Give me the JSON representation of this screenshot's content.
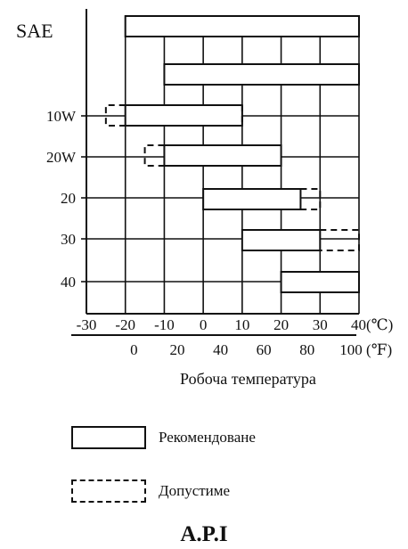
{
  "chart_data": {
    "type": "range-bar",
    "ylabel": "SAE",
    "xlabel": "Робоча температура",
    "x_celsius_ticks": [
      "-30",
      "-20",
      "-10",
      "0",
      "10",
      "20",
      "30",
      "40(℃)"
    ],
    "x_fahrenheit_ticks": [
      "0",
      "20",
      "40",
      "60",
      "80",
      "100 (℉)"
    ],
    "grade_labels": [
      "10W",
      "20W",
      "20",
      "30",
      "40"
    ],
    "xlim_celsius": [
      -30,
      40
    ],
    "grid": true,
    "bars": [
      {
        "grade": "",
        "recommended": [
          -20,
          40
        ]
      },
      {
        "grade": "",
        "recommended": [
          -10,
          40
        ]
      },
      {
        "grade": "10W",
        "recommended": [
          -20,
          10
        ],
        "permissible_from": -25,
        "permissible_to": 10
      },
      {
        "grade": "20W",
        "recommended": [
          -10,
          20
        ],
        "permissible_from": -15
      },
      {
        "grade": "20",
        "recommended": [
          0,
          25
        ],
        "permissible_to": 30
      },
      {
        "grade": "30",
        "recommended": [
          10,
          30
        ],
        "permissible_to": 40
      },
      {
        "grade": "40",
        "recommended": [
          20,
          40
        ]
      }
    ],
    "legend": [
      {
        "style": "solid",
        "label": "Рекомендоване"
      },
      {
        "style": "dashed",
        "label": "Допустиме"
      }
    ],
    "title": "A.P.I"
  }
}
